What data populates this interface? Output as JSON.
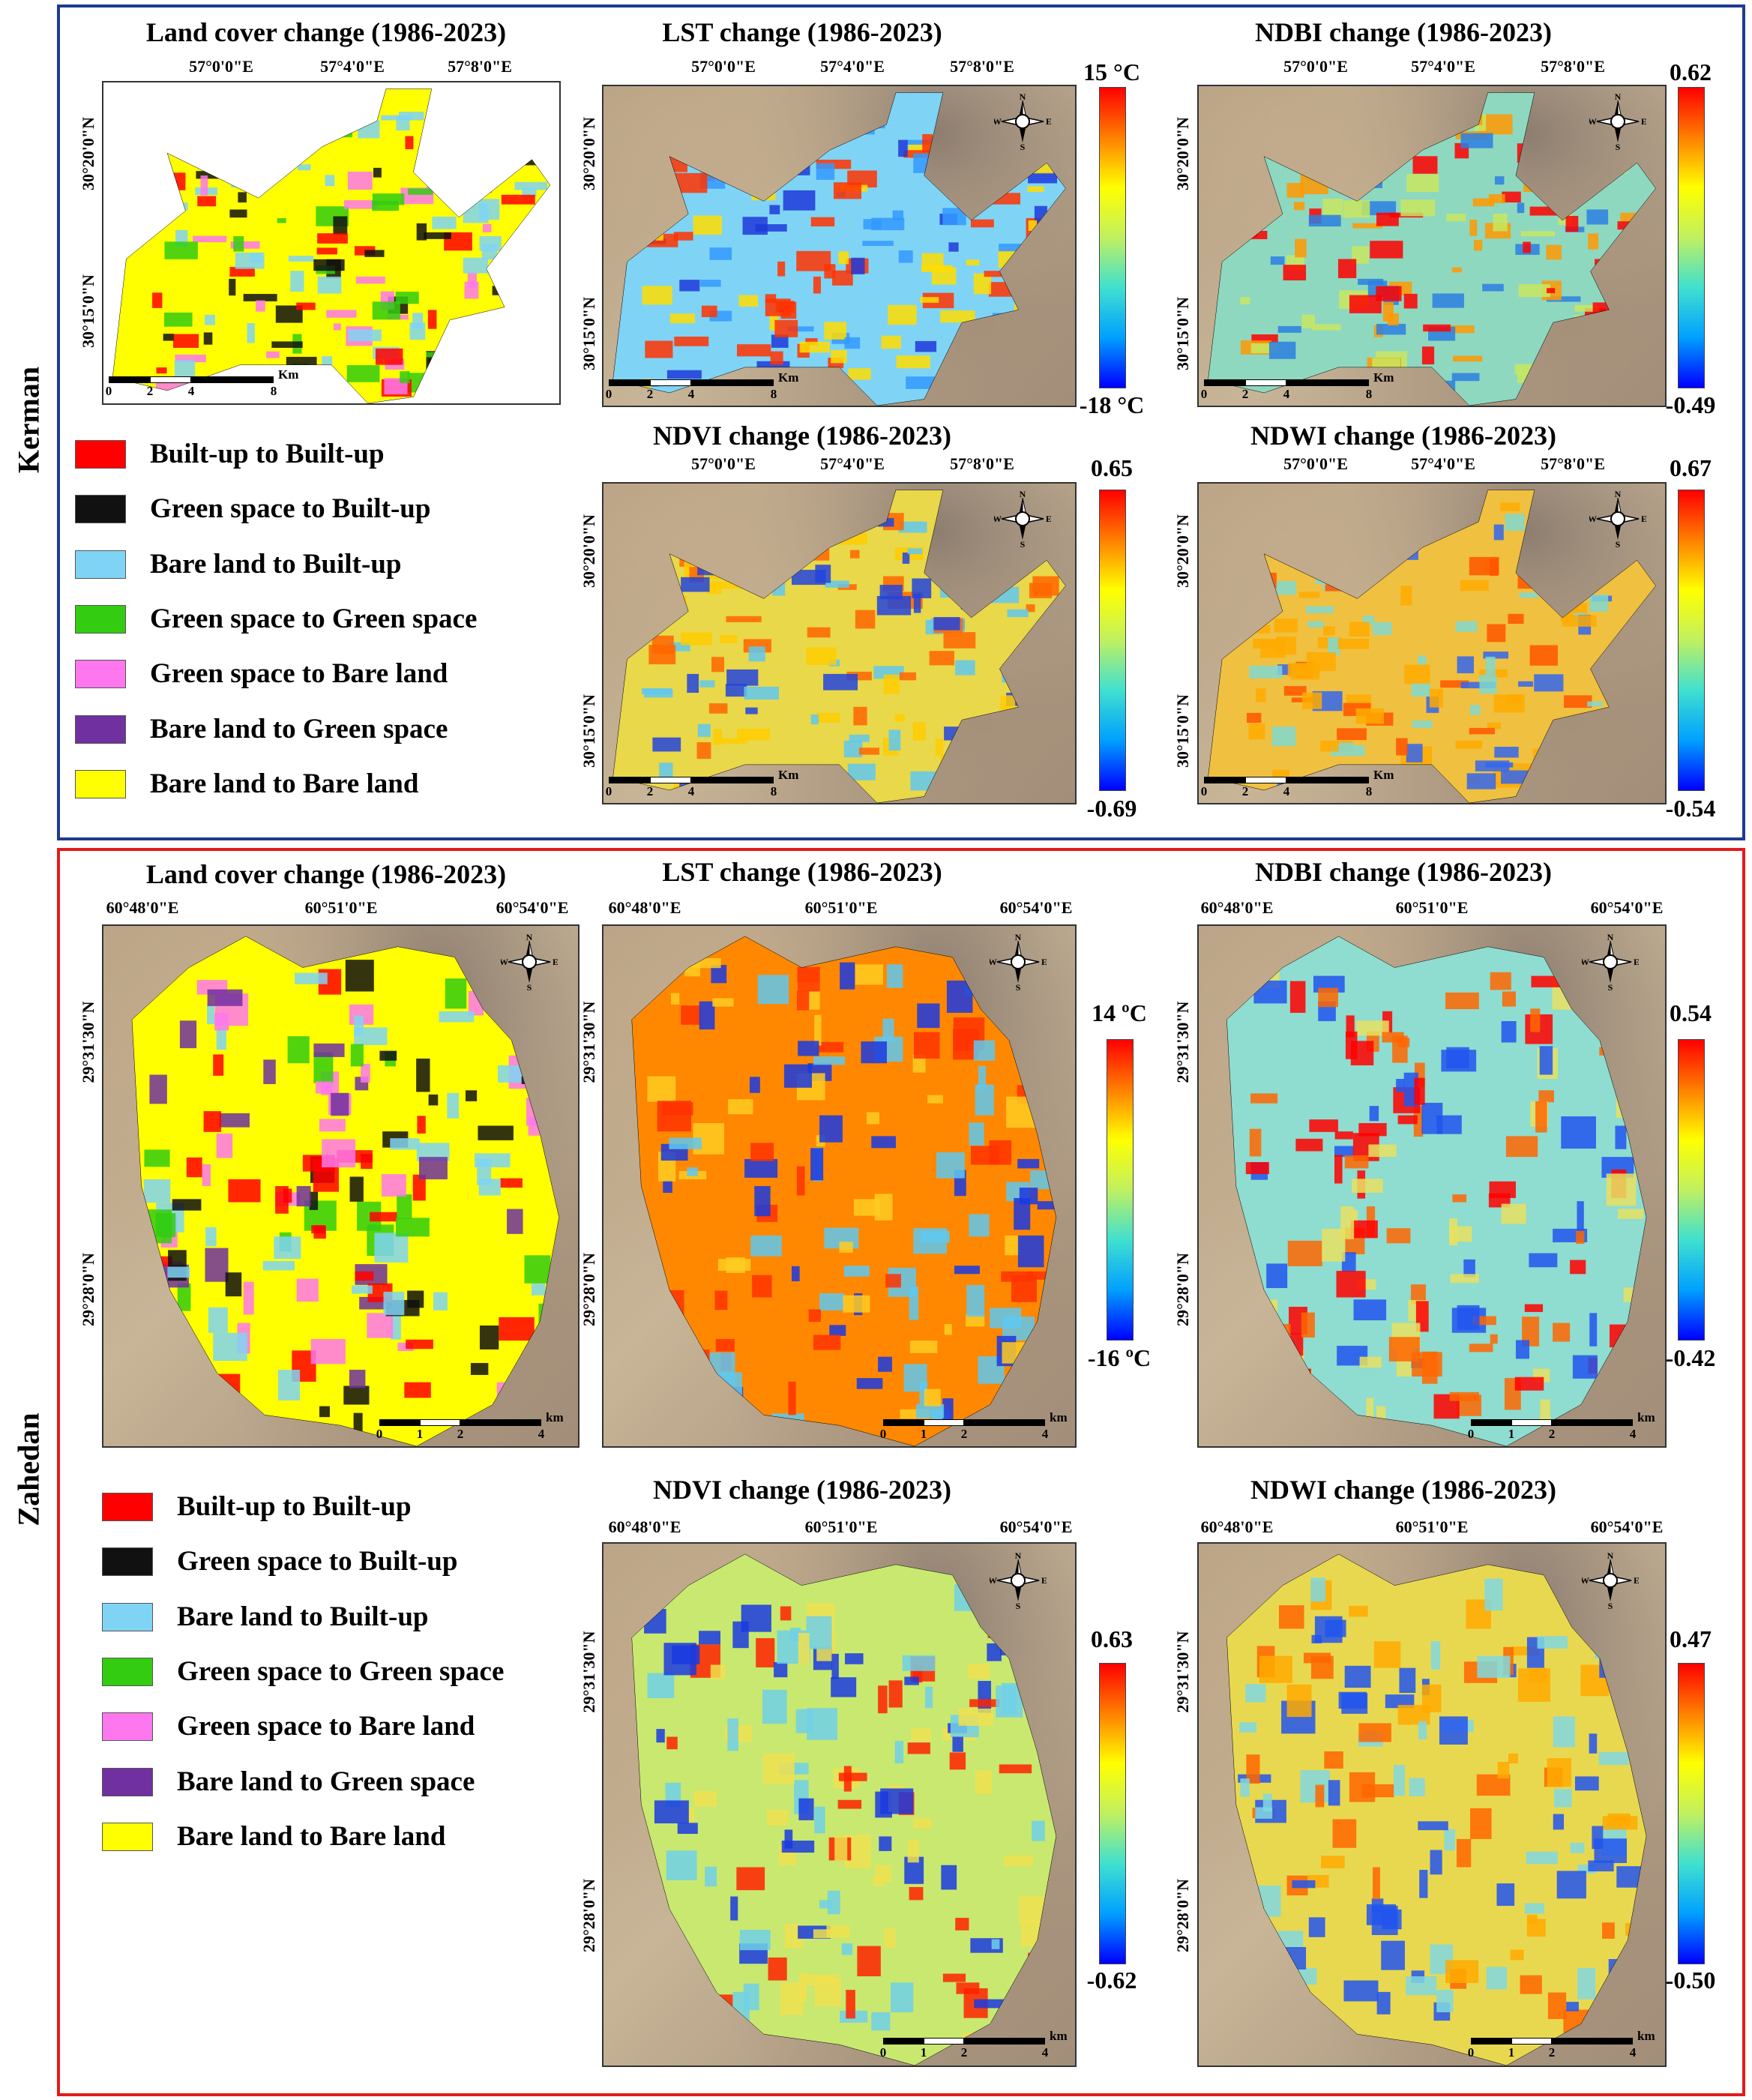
{
  "cities": {
    "kerman": {
      "label": "Kerman",
      "titles": {
        "landcover": "Land cover change (1986-2023)",
        "lst": "LST change (1986-2023)",
        "ndbi": "NDBI change (1986-2023)",
        "ndvi": "NDVI change (1986-2023)",
        "ndwi": "NDWI change (1986-2023)"
      },
      "lon_ticks": [
        "57°0'0\"E",
        "57°4'0\"E",
        "57°8'0\"E"
      ],
      "lat_ticks": [
        "30°20'0\"N",
        "30°15'0\"N"
      ],
      "scale_ticks": [
        "0",
        "2",
        "4",
        "8"
      ],
      "scale_unit": "Km",
      "colorbars": {
        "lst": {
          "max": "15 °C",
          "min": "-18 °C"
        },
        "ndbi": {
          "max": "0.62",
          "min": "-0.49"
        },
        "ndvi": {
          "max": "0.65",
          "min": "-0.69"
        },
        "ndwi": {
          "max": "0.67",
          "min": "-0.54"
        }
      }
    },
    "zahedan": {
      "label": "Zahedan",
      "titles": {
        "landcover": "Land cover change (1986-2023)",
        "lst": "LST change (1986-2023)",
        "ndbi": "NDBI change (1986-2023)",
        "ndvi": "NDVI change (1986-2023)",
        "ndwi": "NDWI change (1986-2023)"
      },
      "lon_ticks": [
        "60°48'0\"E",
        "60°51'0\"E",
        "60°54'0\"E"
      ],
      "lat_ticks": [
        "29°31'30\"N",
        "29°28'0\"N"
      ],
      "scale_ticks": [
        "0",
        "1",
        "2",
        "4"
      ],
      "scale_unit": "km",
      "colorbars": {
        "lst": {
          "max": "14 ºC",
          "min": "-16 ºC"
        },
        "ndbi": {
          "max": "0.54",
          "min": "-0.42"
        },
        "ndvi": {
          "max": "0.63",
          "min": "-0.62"
        },
        "ndwi": {
          "max": "0.47",
          "min": "-0.50"
        }
      }
    }
  },
  "compass": {
    "n": "N",
    "s": "S",
    "e": "E",
    "w": "W"
  },
  "legend": [
    {
      "label": "Built-up to Built-up",
      "color": "#ff0000"
    },
    {
      "label": "Green space to Built-up",
      "color": "#111111"
    },
    {
      "label": "Bare land to Built-up",
      "color": "#7fd4f5"
    },
    {
      "label": "Green space to Green space",
      "color": "#33cc11"
    },
    {
      "label": "Green space to Bare land",
      "color": "#ff77ee"
    },
    {
      "label": "Bare land to Green space",
      "color": "#7030a0"
    },
    {
      "label": "Bare land to Bare land",
      "color": "#ffff00"
    }
  ],
  "colorbar_gradient": [
    "#0000ff",
    "#00a0ff",
    "#40e0d0",
    "#c0f060",
    "#ffff00",
    "#ff8000",
    "#ff0000"
  ],
  "map_patterns": {
    "kerman-landcover": {
      "fill": "#ffff00",
      "patches": [
        "#ff0000",
        "#111111",
        "#7fd4f5",
        "#ff77ee",
        "#33cc11"
      ]
    },
    "kerman-lst": {
      "fill": "#7fd4f5",
      "patches": [
        "#1f3ad9",
        "#ff3300",
        "#ffdd00",
        "#3399ff"
      ]
    },
    "kerman-ndbi": {
      "fill": "#8ed8c0",
      "patches": [
        "#2b7fe0",
        "#ff9900",
        "#ff0000",
        "#c8e860"
      ]
    },
    "kerman-ndvi": {
      "fill": "#e8d84a",
      "patches": [
        "#ff6600",
        "#2244dd",
        "#5fc8f0",
        "#ffcc00"
      ]
    },
    "kerman-ndwi": {
      "fill": "#f0c040",
      "patches": [
        "#ff5500",
        "#3366ee",
        "#80d8d0",
        "#ffaa00"
      ]
    },
    "zahedan-landcover": {
      "fill": "#ffff00",
      "patches": [
        "#ff0000",
        "#7fd4f5",
        "#111111",
        "#ff77ee",
        "#33cc11",
        "#7030a0"
      ]
    },
    "zahedan-lst": {
      "fill": "#ff8800",
      "patches": [
        "#1a3ae0",
        "#5fc8f0",
        "#ff3300",
        "#ffcc22"
      ]
    },
    "zahedan-ndbi": {
      "fill": "#8fdcd0",
      "patches": [
        "#ff6600",
        "#ff0000",
        "#2255ee",
        "#e8e060"
      ]
    },
    "zahedan-ndvi": {
      "fill": "#c8e870",
      "patches": [
        "#ff2200",
        "#1a3ae0",
        "#70d0e8",
        "#f0e050"
      ]
    },
    "zahedan-ndwi": {
      "fill": "#e8d850",
      "patches": [
        "#ff6600",
        "#2255ee",
        "#80d8e0",
        "#ffaa00"
      ]
    }
  }
}
